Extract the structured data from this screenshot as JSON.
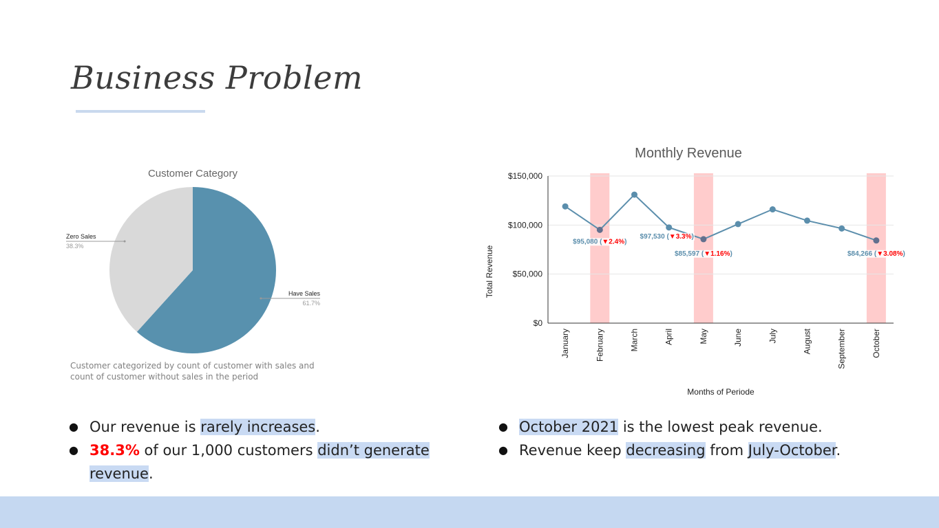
{
  "slide": {
    "title": "Business Problem",
    "pie_caption": "Customer categorized by count of customer with sales and count of customer without sales in the period"
  },
  "colors": {
    "pie_have": "#5891ae",
    "pie_zero": "#d9d9d9",
    "line": "#5b8eac",
    "highlight_band": "#ffcccc",
    "down_arrow": "#ff0000",
    "text_highlight": "#c9daf3",
    "footer": "#c5d8f1"
  },
  "chart_data": [
    {
      "type": "pie",
      "title": "Customer Category",
      "slices": [
        {
          "label": "Have Sales",
          "value": 61.7,
          "pct_label": "61.7%"
        },
        {
          "label": "Zero Sales",
          "value": 38.3,
          "pct_label": "38.3%"
        }
      ]
    },
    {
      "type": "line",
      "title": "Monthly Revenue",
      "xlabel": "Months of Periode",
      "ylabel": "Total Revenue",
      "categories": [
        "January",
        "February",
        "March",
        "April",
        "May",
        "June",
        "July",
        "August",
        "September",
        "October"
      ],
      "values": [
        119000,
        95080,
        131000,
        97530,
        85597,
        101000,
        116000,
        104500,
        96500,
        84266
      ],
      "ylim": [
        0,
        150000
      ],
      "yticks": [
        "$0",
        "$50,000",
        "$100,000",
        "$150,000"
      ],
      "highlighted_months": [
        "February",
        "May",
        "October"
      ],
      "annotations": [
        {
          "month": "February",
          "value_text": "$95,080",
          "change_text": "2.4%"
        },
        {
          "month": "April",
          "value_text": "$97,530",
          "change_text": "3.3%"
        },
        {
          "month": "May",
          "value_text": "$85,597",
          "change_text": "1.16%"
        },
        {
          "month": "October",
          "value_text": "$84,266",
          "change_text": "3.08%"
        }
      ]
    }
  ],
  "bullets_left": {
    "b1_pre": "Our revenue is ",
    "b1_hl": "rarely increases",
    "b1_post": ".",
    "b2_red": "38.3%",
    "b2_mid": " of our 1,000 customers ",
    "b2_hl1": "didn’t generate",
    "b2_hl2": "revenue",
    "b2_post": "."
  },
  "bullets_right": {
    "b1_hl": "October 2021",
    "b1_post": " is the lowest peak revenue.",
    "b2_pre": "Revenue keep ",
    "b2_hl1": "decreasing",
    "b2_mid": " from ",
    "b2_hl2": "July-October",
    "b2_post": "."
  }
}
